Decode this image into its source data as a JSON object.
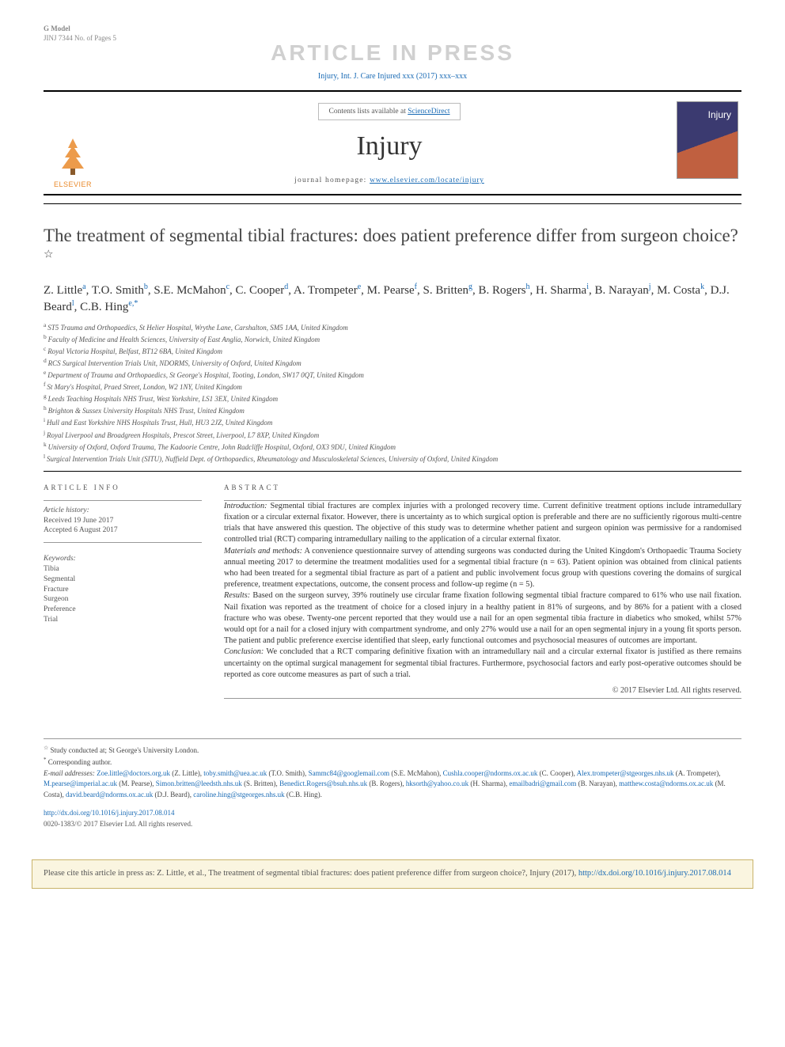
{
  "header": {
    "gmodel_label": "G Model",
    "gmodel_id": "JINJ 7344 No. of Pages 5",
    "watermark": "ARTICLE IN PRESS",
    "citation_line": "Injury, Int. J. Care Injured xxx (2017) xxx–xxx"
  },
  "masthead": {
    "elsevier_label": "ELSEVIER",
    "contents_prefix": "Contents lists available at ",
    "contents_link": "ScienceDirect",
    "journal_name": "Injury",
    "homepage_label": "journal homepage: ",
    "homepage_url": "www.elsevier.com/locate/injury",
    "cover_title": "Injury",
    "colors": {
      "link": "#1a6bb5",
      "elsevier_orange": "#e98a2b",
      "cover_top": "#3b3a70",
      "cover_bottom": "#c06040"
    }
  },
  "article": {
    "title": "The treatment of segmental tibial fractures: does patient preference differ from surgeon choice?",
    "title_star": "☆",
    "authors_html": "Z. Little<sup>a</sup>, T.O. Smith<sup>b</sup>, S.E. McMahon<sup>c</sup>, C. Cooper<sup>d</sup>, A. Trompeter<sup>e</sup>, M. Pearse<sup>f</sup>, S. Britten<sup>g</sup>, B. Rogers<sup>h</sup>, H. Sharma<sup>i</sup>, B. Narayan<sup>j</sup>, M. Costa<sup>k</sup>, D.J. Beard<sup>l</sup>, C.B. Hing<sup>e,*</sup>",
    "affiliations": [
      "a ST5 Trauma and Orthopaedics, St Helier Hospital, Wrythe Lane, Carshalton, SM5 1AA, United Kingdom",
      "b Faculty of Medicine and Health Sciences, University of East Anglia, Norwich, United Kingdom",
      "c Royal Victoria Hospital, Belfast, BT12 6BA, United Kingdom",
      "d RCS Surgical Intervention Trials Unit, NDORMS, University of Oxford, United Kingdom",
      "e Department of Trauma and Orthopaedics, St George's Hospital, Tooting, London, SW17 0QT, United Kingdom",
      "f St Mary's Hospital, Praed Street, London, W2 1NY, United Kingdom",
      "g Leeds Teaching Hospitals NHS Trust, West Yorkshire, LS1 3EX, United Kingdom",
      "h Brighton & Sussex University Hospitals NHS Trust, United Kingdom",
      "i Hull and East Yorkshire NHS Hospitals Trust, Hull, HU3 2JZ, United Kingdom",
      "j Royal Liverpool and Broadgreen Hospitals, Prescot Street, Liverpool, L7 8XP, United Kingdom",
      "k University of Oxford, Oxford Trauma, The Kadoorie Centre, John Radcliffe Hospital, Oxford, OX3 9DU, United Kingdom",
      "l Surgical Intervention Trials Unit (SITU), Nuffield Dept. of Orthopaedics, Rheumatology and Musculoskeletal Sciences, University of Oxford, United Kingdom"
    ]
  },
  "info": {
    "section_label": "ARTICLE INFO",
    "history_label": "Article history:",
    "received": "Received 19 June 2017",
    "accepted": "Accepted 6 August 2017",
    "kw_label": "Keywords:",
    "keywords": [
      "Tibia",
      "Segmental",
      "Fracture",
      "Surgeon",
      "Preference",
      "Trial"
    ]
  },
  "abstract": {
    "section_label": "ABSTRACT",
    "intro_label": "Introduction:",
    "intro": " Segmental tibial fractures are complex injuries with a prolonged recovery time. Current definitive treatment options include intramedullary fixation or a circular external fixator. However, there is uncertainty as to which surgical option is preferable and there are no sufficiently rigorous multi-centre trials that have answered this question. The objective of this study was to determine whether patient and surgeon opinion was permissive for a randomised controlled trial (RCT) comparing intramedullary nailing to the application of a circular external fixator.",
    "mm_label": "Materials and methods:",
    "mm": " A convenience questionnaire survey of attending surgeons was conducted during the United Kingdom's Orthopaedic Trauma Society annual meeting 2017 to determine the treatment modalities used for a segmental tibial fracture (n = 63). Patient opinion was obtained from clinical patients who had been treated for a segmental tibial fracture as part of a patient and public involvement focus group with questions covering the domains of surgical preference, treatment expectations, outcome, the consent process and follow-up regime (n = 5).",
    "res_label": "Results:",
    "res": " Based on the surgeon survey, 39% routinely use circular frame fixation following segmental tibial fracture compared to 61% who use nail fixation. Nail fixation was reported as the treatment of choice for a closed injury in a healthy patient in 81% of surgeons, and by 86% for a patient with a closed fracture who was obese. Twenty-one percent reported that they would use a nail for an open segmental tibia fracture in diabetics who smoked, whilst 57% would opt for a nail for a closed injury with compartment syndrome, and only 27% would use a nail for an open segmental injury in a young fit sports person. The patient and public preference exercise identified that sleep, early functional outcomes and psychosocial measures of outcomes are important.",
    "con_label": "Conclusion:",
    "con": " We concluded that a RCT comparing definitive fixation with an intramedullary nail and a circular external fixator is justified as there remains uncertainty on the optimal surgical management for segmental tibial fractures. Furthermore, psychosocial factors and early post-operative outcomes should be reported as core outcome measures as part of such a trial.",
    "copyright": "© 2017 Elsevier Ltd. All rights reserved."
  },
  "footnotes": {
    "star_note": "Study conducted at; St George's University London.",
    "corr_label": "Corresponding author.",
    "email_label": "E-mail addresses:",
    "emails": [
      {
        "e": "Zoe.little@doctors.org.uk",
        "n": "(Z. Little)"
      },
      {
        "e": "toby.smith@uea.ac.uk",
        "n": "(T.O. Smith)"
      },
      {
        "e": "Sammc84@googlemail.com",
        "n": "(S.E. McMahon)"
      },
      {
        "e": "Cushla.cooper@ndorms.ox.ac.uk",
        "n": "(C. Cooper)"
      },
      {
        "e": "Alex.trompeter@stgeorges.nhs.uk",
        "n": "(A. Trompeter)"
      },
      {
        "e": "M.pearse@imperial.ac.uk",
        "n": "(M. Pearse)"
      },
      {
        "e": "Simon.britten@leedsth.nhs.uk",
        "n": "(S. Britten)"
      },
      {
        "e": "Benedict.Rogers@bsuh.nhs.uk",
        "n": "(B. Rogers)"
      },
      {
        "e": "hksorth@yahoo.co.uk",
        "n": "(H. Sharma)"
      },
      {
        "e": "emailbadri@gmail.com",
        "n": "(B. Narayan)"
      },
      {
        "e": "matthew.costa@ndorms.ox.ac.uk",
        "n": "(M. Costa)"
      },
      {
        "e": "david.beard@ndorms.ox.ac.uk",
        "n": "(D.J. Beard)"
      },
      {
        "e": "caroline.hing@stgeorges.nhs.uk",
        "n": "(C.B. Hing)"
      }
    ],
    "doi_url": "http://dx.doi.org/10.1016/j.injury.2017.08.014",
    "doi_copy": "0020-1383/© 2017 Elsevier Ltd. All rights reserved."
  },
  "citebox": {
    "text_prefix": "Please cite this article in press as: Z. Little, et al., The treatment of segmental tibial fractures: does patient preference differ from surgeon choice?, Injury (2017), ",
    "url": "http://dx.doi.org/10.1016/j.injury.2017.08.014",
    "bg": "#faf5e0",
    "border": "#c9b36a"
  }
}
